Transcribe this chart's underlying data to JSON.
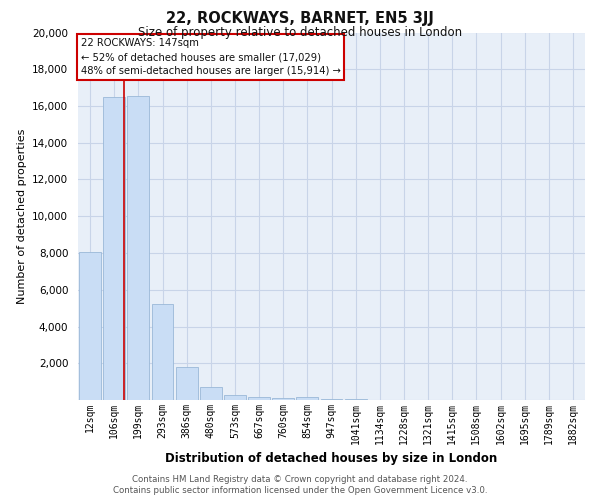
{
  "title": "22, ROCKWAYS, BARNET, EN5 3JJ",
  "subtitle": "Size of property relative to detached houses in London",
  "xlabel": "Distribution of detached houses by size in London",
  "ylabel": "Number of detached properties",
  "categories": [
    "12sqm",
    "106sqm",
    "199sqm",
    "293sqm",
    "386sqm",
    "480sqm",
    "573sqm",
    "667sqm",
    "760sqm",
    "854sqm",
    "947sqm",
    "1041sqm",
    "1134sqm",
    "1228sqm",
    "1321sqm",
    "1415sqm",
    "1508sqm",
    "1602sqm",
    "1695sqm",
    "1789sqm",
    "1882sqm"
  ],
  "values": [
    8050,
    16500,
    16550,
    5200,
    1820,
    700,
    290,
    190,
    100,
    145,
    50,
    30,
    20,
    15,
    10,
    8,
    5,
    4,
    3,
    2,
    2
  ],
  "bar_color": "#c9ddf5",
  "bar_edge_color": "#9ab8d8",
  "vline_x": 1.42,
  "vline_color": "#cc0000",
  "box_text_line1": "22 ROCKWAYS: 147sqm",
  "box_text_line2": "← 52% of detached houses are smaller (17,029)",
  "box_text_line3": "48% of semi-detached houses are larger (15,914) →",
  "box_color": "#cc0000",
  "box_fill": "#ffffff",
  "ylim": [
    0,
    20000
  ],
  "yticks": [
    0,
    2000,
    4000,
    6000,
    8000,
    10000,
    12000,
    14000,
    16000,
    18000,
    20000
  ],
  "grid_color": "#c8d4e8",
  "bg_color": "#e8eff8",
  "footnote1": "Contains HM Land Registry data © Crown copyright and database right 2024.",
  "footnote2": "Contains public sector information licensed under the Open Government Licence v3.0."
}
